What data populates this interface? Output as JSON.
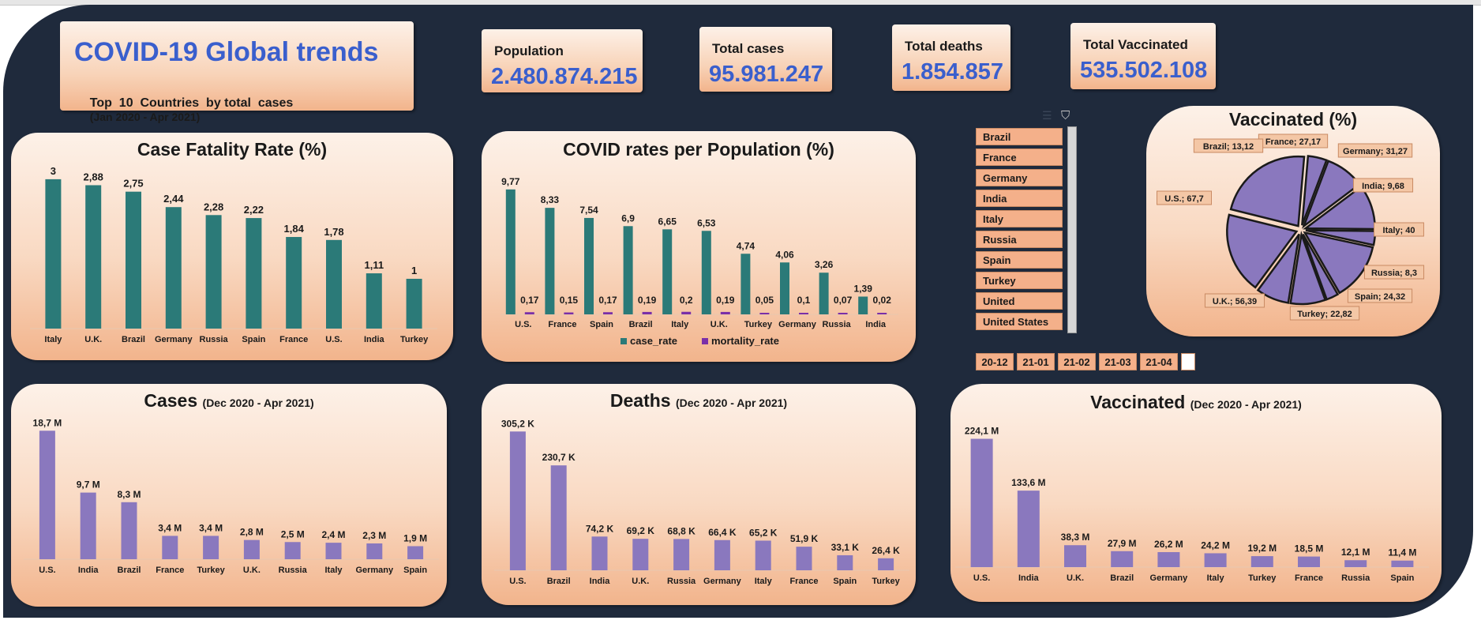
{
  "header": {
    "title": "COVID-19 Global trends",
    "subtitle": "Top  10  Countries  by total  cases",
    "subtitle_period": "(Jan 2020 - Apr 2021)"
  },
  "kpis": [
    {
      "label": "Population",
      "value": "2.480.874.215"
    },
    {
      "label": "Total cases",
      "value": "95.981.247"
    },
    {
      "label": "Total deaths",
      "value": "1.854.857"
    },
    {
      "label": "Total Vaccinated",
      "value": "535.502.108"
    }
  ],
  "slicer": {
    "items": [
      "Brazil",
      "France",
      "Germany",
      "India",
      "Italy",
      "Russia",
      "Spain",
      "Turkey",
      "United Kingdom",
      "United States"
    ]
  },
  "timeline": {
    "items": [
      "20-12",
      "21-01",
      "21-02",
      "21-03",
      "21-04"
    ]
  },
  "colors": {
    "teal": "#2b7a78",
    "purple": "#8a78be",
    "pie": "#8a78be",
    "panel_bg": "#f9d9c2",
    "dash_bg": "#1f2a3c",
    "kpi_value": "#3a5fcd"
  },
  "panels": {
    "cfr_title": "Case Fatality Rate (%)",
    "rates_title": "COVID rates per Population (%)",
    "vacpct_title": "Vaccinated (%)",
    "cases_title": "Cases",
    "deaths_title": "Deaths",
    "vaccinated_title": "Vaccinated",
    "period": "(Dec 2020 - Apr 2021)"
  },
  "chart_data": [
    {
      "id": "cfr",
      "type": "bar",
      "title": "Case Fatality Rate (%)",
      "categories": [
        "Italy",
        "U.K.",
        "Brazil",
        "Germany",
        "Russia",
        "Spain",
        "France",
        "U.S.",
        "India",
        "Turkey"
      ],
      "values": [
        3,
        2.88,
        2.75,
        2.44,
        2.28,
        2.22,
        1.84,
        1.78,
        1.11,
        1
      ],
      "labels": [
        "3",
        "2,88",
        "2,75",
        "2,44",
        "2,28",
        "2,22",
        "1,84",
        "1,78",
        "1,11",
        "1"
      ],
      "ylim": [
        0,
        3.3
      ]
    },
    {
      "id": "rates",
      "type": "bar",
      "title": "COVID rates per Population (%)",
      "categories": [
        "U.S.",
        "France",
        "Spain",
        "Brazil",
        "Italy",
        "U.K.",
        "Turkey",
        "Germany",
        "Russia",
        "India"
      ],
      "series": [
        {
          "name": "case_rate",
          "values": [
            9.77,
            8.33,
            7.54,
            6.9,
            6.65,
            6.53,
            4.74,
            4.06,
            3.26,
            1.39
          ],
          "labels": [
            "9,77",
            "8,33",
            "7,54",
            "6,9",
            "6,65",
            "6,53",
            "4,74",
            "4,06",
            "3,26",
            "1,39"
          ]
        },
        {
          "name": "mortality_rate",
          "values": [
            0.17,
            0.15,
            0.17,
            0.19,
            0.2,
            0.19,
            0.05,
            0.1,
            0.07,
            0.02
          ],
          "labels": [
            "0,17",
            "0,15",
            "0,17",
            "0,19",
            "0,2",
            "0,19",
            "0,05",
            "0,1",
            "0,07",
            "0,02"
          ]
        }
      ],
      "legend": "bottom",
      "ylim": [
        0,
        10.5
      ]
    },
    {
      "id": "vacpct",
      "type": "pie",
      "title": "Vaccinated (%)",
      "categories": [
        "France",
        "Germany",
        "India",
        "Italy",
        "Russia",
        "Spain",
        "Turkey",
        "U.K.",
        "U.S.",
        "Brazil"
      ],
      "values": [
        27.17,
        31.27,
        9.68,
        40,
        8.3,
        24.32,
        22.82,
        56.39,
        67.7,
        13.12
      ],
      "labels": [
        "France; 27,17",
        "Germany; 31,27",
        "India; 9,68",
        "Italy; 40",
        "Russia; 8,3",
        "Spain; 24,32",
        "Turkey; 22,82",
        "U.K.; 56,39",
        "U.S.; 67,7",
        "Brazil; 13,12"
      ]
    },
    {
      "id": "cases",
      "type": "bar",
      "title": "Cases (Dec 2020 - Apr 2021)",
      "categories": [
        "U.S.",
        "India",
        "Brazil",
        "France",
        "Turkey",
        "U.K.",
        "Russia",
        "Italy",
        "Germany",
        "Spain"
      ],
      "values": [
        18.7,
        9.7,
        8.3,
        3.4,
        3.4,
        2.8,
        2.5,
        2.4,
        2.3,
        1.9
      ],
      "labels": [
        "18,7 M",
        "9,7 M",
        "8,3 M",
        "3,4 M",
        "3,4 M",
        "2,8 M",
        "2,5 M",
        "2,4 M",
        "2,3 M",
        "1,9 M"
      ],
      "unit": "M",
      "ylim": [
        0,
        20
      ]
    },
    {
      "id": "deaths",
      "type": "bar",
      "title": "Deaths (Dec 2020 - Apr 2021)",
      "categories": [
        "U.S.",
        "Brazil",
        "India",
        "U.K.",
        "Russia",
        "Germany",
        "Italy",
        "France",
        "Spain",
        "Turkey"
      ],
      "values": [
        305.2,
        230.7,
        74.2,
        69.2,
        68.8,
        66.4,
        65.2,
        51.9,
        33.1,
        26.4
      ],
      "labels": [
        "305,2 K",
        "230,7 K",
        "74,2 K",
        "69,2 K",
        "68,8 K",
        "66,4 K",
        "65,2 K",
        "51,9 K",
        "33,1 K",
        "26,4 K"
      ],
      "unit": "K",
      "ylim": [
        0,
        330
      ]
    },
    {
      "id": "vaccinated",
      "type": "bar",
      "title": "Vaccinated (Dec 2020 - Apr 2021)",
      "categories": [
        "U.S.",
        "India",
        "U.K.",
        "Brazil",
        "Germany",
        "Italy",
        "Turkey",
        "France",
        "Russia",
        "Spain"
      ],
      "values": [
        224.1,
        133.6,
        38.3,
        27.9,
        26.2,
        24.2,
        19.2,
        18.5,
        12.1,
        11.4
      ],
      "labels": [
        "224,1 M",
        "133,6 M",
        "38,3 M",
        "27,9 M",
        "26,2 M",
        "24,2 M",
        "19,2 M",
        "18,5 M",
        "12,1 M",
        "11,4 M"
      ],
      "unit": "M",
      "ylim": [
        0,
        240
      ]
    }
  ]
}
